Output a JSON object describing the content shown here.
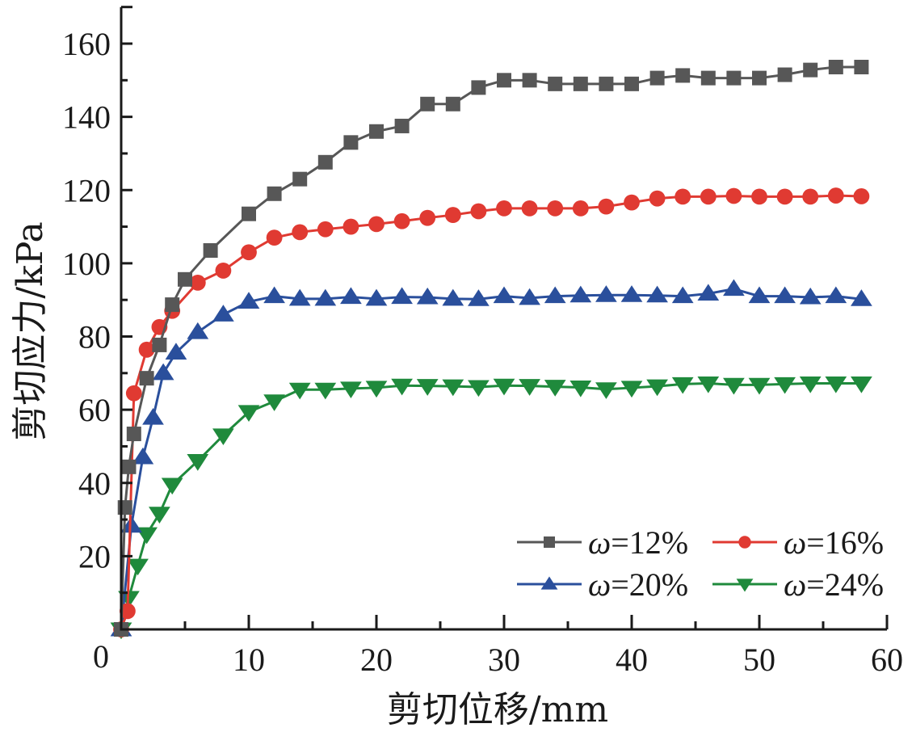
{
  "chart_data": {
    "type": "line",
    "title": "",
    "xlabel": "剪切位移/mm",
    "ylabel": "剪切应力/kPa",
    "xlim": [
      0,
      60
    ],
    "ylim": [
      0,
      170
    ],
    "xticks": [
      0,
      10,
      20,
      30,
      40,
      50,
      60
    ],
    "xtick_labels": [
      "0",
      "10",
      "20",
      "30",
      "40",
      "50",
      "60"
    ],
    "xminor": [
      5,
      15,
      25,
      35,
      45,
      55
    ],
    "yticks": [
      20,
      40,
      60,
      80,
      100,
      120,
      140,
      160
    ],
    "ytick_labels": [
      "20",
      "40",
      "60",
      "80",
      "100",
      "120",
      "140",
      "160"
    ],
    "yminor": [
      10,
      30,
      50,
      70,
      90,
      110,
      130,
      150
    ],
    "origin_label": "0",
    "grid": false,
    "legend_position": "bottom-right",
    "series": [
      {
        "name": "ω=12%",
        "legend_prefix": "ω",
        "legend_suffix": "=12%",
        "color": "#575757",
        "marker": "square",
        "x": [
          0,
          0.3,
          0.6,
          1.0,
          2.0,
          3.0,
          4.0,
          5.0,
          7.0,
          10,
          12,
          14,
          16,
          18,
          20,
          22,
          24,
          26,
          28,
          30,
          32,
          34,
          36,
          38,
          40,
          42,
          44,
          46,
          48,
          50,
          52,
          54,
          56,
          58
        ],
        "y": [
          0,
          33.3,
          44.4,
          53.4,
          68.6,
          77.7,
          88.7,
          95.6,
          103.5,
          113.5,
          119,
          123,
          127.6,
          133,
          136,
          137.5,
          143.5,
          143.5,
          148,
          150,
          150,
          149,
          149,
          149,
          149,
          150.6,
          151.3,
          150.6,
          150.6,
          150.6,
          151.5,
          152.8,
          153.6,
          153.6
        ]
      },
      {
        "name": "ω=16%",
        "legend_prefix": "ω",
        "legend_suffix": "=16%",
        "color": "#e03a32",
        "marker": "circle",
        "x": [
          0,
          0.5,
          1.0,
          2.0,
          3.0,
          4.0,
          6.0,
          8.0,
          10,
          12,
          14,
          16,
          18,
          20,
          22,
          24,
          26,
          28,
          30,
          32,
          34,
          36,
          38,
          40,
          42,
          44,
          46,
          48,
          50,
          52,
          54,
          56,
          58
        ],
        "y": [
          0,
          5,
          64.5,
          76.4,
          82.6,
          87,
          94.7,
          98,
          103,
          107,
          108.5,
          109.3,
          110,
          110.7,
          111.5,
          112.4,
          113.2,
          114.2,
          115,
          115,
          115,
          115,
          115.5,
          116.6,
          117.7,
          118.2,
          118.2,
          118.4,
          118.2,
          118.2,
          118.2,
          118.5,
          118.3
        ]
      },
      {
        "name": "ω=20%",
        "legend_prefix": "ω",
        "legend_suffix": "=20%",
        "color": "#2a4f9c",
        "marker": "triangle-up",
        "x": [
          0,
          0.8,
          1.7,
          2.5,
          3.3,
          4.3,
          6.0,
          8.0,
          10,
          12,
          14,
          16,
          18,
          20,
          22,
          24,
          26,
          28,
          30,
          32,
          34,
          36,
          38,
          40,
          42,
          44,
          46,
          48,
          50,
          52,
          54,
          56,
          58
        ],
        "y": [
          0,
          28.3,
          47,
          57.8,
          70,
          75.6,
          81.2,
          86,
          89.5,
          91,
          90.3,
          90.3,
          90.8,
          90.3,
          90.8,
          90.7,
          90.3,
          90.2,
          91,
          90.5,
          91,
          91.2,
          91.3,
          91.3,
          91.2,
          91,
          91.7,
          93,
          91,
          91,
          90.7,
          91,
          90.2
        ]
      },
      {
        "name": "ω=24%",
        "legend_prefix": "ω",
        "legend_suffix": "=24%",
        "color": "#1f8a3c",
        "marker": "triangle-down",
        "x": [
          0,
          0.6,
          1.3,
          2.0,
          3.0,
          4.0,
          6.0,
          8.0,
          10,
          12,
          14,
          16,
          18,
          20,
          22,
          24,
          26,
          28,
          30,
          32,
          34,
          36,
          38,
          40,
          42,
          44,
          46,
          48,
          50,
          52,
          54,
          56,
          58
        ],
        "y": [
          0,
          8.6,
          17.4,
          26,
          31.6,
          39.5,
          46,
          53,
          59.4,
          62.3,
          65.5,
          65.5,
          65.8,
          66,
          66.6,
          66.5,
          66.4,
          66.2,
          66.6,
          66.5,
          66.3,
          66.1,
          65.6,
          66,
          66.4,
          67,
          67.2,
          66.8,
          66.8,
          67,
          67.2,
          67.2,
          67.2
        ]
      }
    ]
  }
}
